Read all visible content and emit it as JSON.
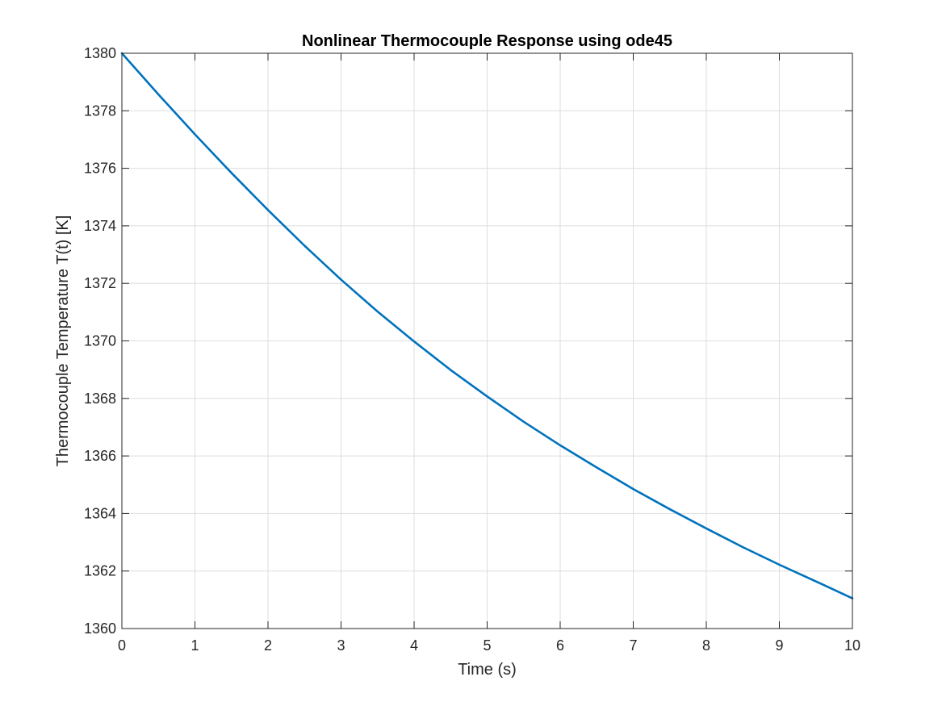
{
  "chart_data": {
    "type": "line",
    "title": "Nonlinear Thermocouple Response using ode45",
    "xlabel": "Time (s)",
    "ylabel": "Thermocouple Temperature T(t) [K]",
    "xlim": [
      0,
      10
    ],
    "ylim": [
      1360,
      1380
    ],
    "xticks": [
      0,
      1,
      2,
      3,
      4,
      5,
      6,
      7,
      8,
      9,
      10
    ],
    "yticks": [
      1360,
      1362,
      1364,
      1366,
      1368,
      1370,
      1372,
      1374,
      1376,
      1378,
      1380
    ],
    "grid": true,
    "series": [
      {
        "color": "#0072BD",
        "x": [
          0,
          0.5,
          1,
          1.5,
          2,
          2.5,
          3,
          3.5,
          4,
          4.5,
          5,
          5.5,
          6,
          6.5,
          7,
          7.5,
          8,
          8.5,
          9,
          9.5,
          10
        ],
        "y": [
          1380.0,
          1378.57,
          1377.18,
          1375.84,
          1374.55,
          1373.31,
          1372.13,
          1371.02,
          1369.98,
          1368.99,
          1368.07,
          1367.19,
          1366.37,
          1365.6,
          1364.85,
          1364.15,
          1363.48,
          1362.83,
          1362.22,
          1361.64,
          1361.05
        ]
      }
    ]
  }
}
